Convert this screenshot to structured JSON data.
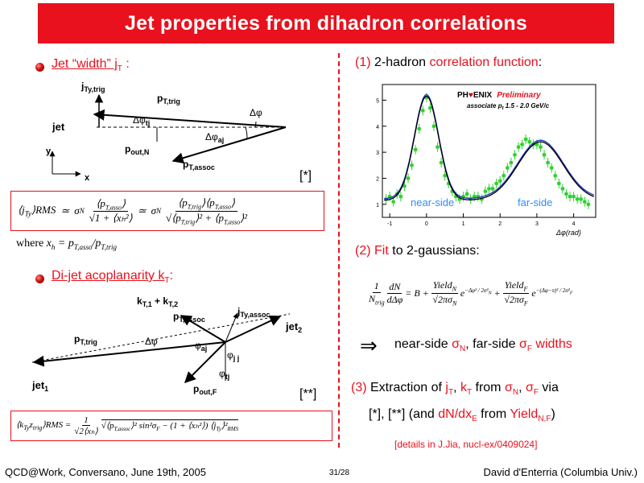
{
  "title": "Jet properties from dihadron correlations",
  "left": {
    "bullet1": {
      "label": "Jet “width”  j",
      "sub": "T",
      "colon": " :"
    },
    "diagram1": {
      "labels": [
        "j",
        "Ty,trig",
        "p",
        "T,trig",
        "Δφ",
        "tj",
        "Δφ",
        "jet",
        "Δφ",
        "aj",
        "p",
        "out,N",
        "p",
        "T,assoc",
        "y",
        "x"
      ]
    },
    "ref1": "[*]",
    "formula1": {
      "lhs": "⟨j",
      "lhs_sub": "Ty",
      "rms": "⟩RMS",
      "approx": "≃",
      "sigma": "σ",
      "sigma_sub": "N",
      "num1": "⟨p",
      "num1_sub": "T,asso",
      "num1_end": "⟩",
      "den1": "√1 + ⟨xₕ²⟩",
      "num2": "⟨p",
      "num2_sub": "T,trig",
      "num2_mid": "⟩⟨p",
      "num2_sub2": "T,asso",
      "num2_end": "⟩",
      "den2": "√⟨p",
      "den2_sub": "T,trig",
      "den2_mid": "⟩² + ⟨p",
      "den2_sub2": "T,asso",
      "den2_end": "⟩²"
    },
    "where": "where ",
    "where_expr": "x",
    "where_sub": "h",
    "where_rest": " = p",
    "where_sub2": "T,asso",
    "where_div": "/p",
    "where_sub3": "T,trig",
    "bullet2": {
      "label": "Di-jet acoplanarity k",
      "sub": "T",
      "colon": ":"
    },
    "diagram2": {
      "labels": [
        "k",
        "T,1",
        " + k",
        "T,2",
        "p",
        "T,assoc",
        "j",
        "Ty,assoc",
        "jet",
        "2",
        "p",
        "T,trig",
        "Δφ",
        "φ",
        "aj",
        "φ",
        "j j",
        "φ",
        "tj",
        "jet",
        "1",
        "p",
        "out,F"
      ]
    },
    "ref2": "[**]",
    "formula2": {
      "text": "⟨k",
      "sub": "Ty",
      "text2": "z",
      "sub2": "trig",
      "rms": "⟩RMS = ",
      "frac_num": "1",
      "frac_den": "√2⟨xₕ⟩",
      "body": "√⟨p",
      "body_sub": "T,assoc",
      "body2": "⟩² sin²σ",
      "body_sub2": "F",
      "body3": " − (1 + ⟨xₕ²⟩) ⟨j",
      "body_sub3": "Ty",
      "body4": "⟩²",
      "body_sub4": "RMS"
    }
  },
  "right": {
    "step1": {
      "num": "(1)",
      "text": " 2-hadron ",
      "hl": "correlation function",
      "end": ":"
    },
    "plot": {
      "logo_a": "PH",
      "logo_b": "ENIX",
      "prelim": "Preliminary",
      "assoc": "associate p",
      "assoc_sub": "t",
      "assoc_range": " 1.5 - 2.0 GeV/c",
      "near_label": "near-side",
      "far_label": "far-side",
      "xaxis_label": "Δφ(rad)"
    },
    "chart_data": {
      "type": "scatter",
      "title": "",
      "xlabel": "Δφ(rad)",
      "ylabel": "",
      "xlim": [
        -1.2,
        4.6
      ],
      "ylim": [
        0.5,
        5.6
      ],
      "xticks": [
        "-1",
        "0",
        "1",
        "2",
        "3",
        "4"
      ],
      "yticks": [
        "1",
        "2",
        "3",
        "4",
        "5"
      ],
      "x": [
        -1.1,
        -1.0,
        -0.9,
        -0.8,
        -0.7,
        -0.6,
        -0.5,
        -0.4,
        -0.3,
        -0.2,
        -0.1,
        0.0,
        0.1,
        0.2,
        0.3,
        0.4,
        0.5,
        0.6,
        0.7,
        0.8,
        0.9,
        1.0,
        1.1,
        1.2,
        1.3,
        1.4,
        1.5,
        1.6,
        1.7,
        1.8,
        1.9,
        2.0,
        2.1,
        2.2,
        2.3,
        2.4,
        2.5,
        2.6,
        2.7,
        2.8,
        2.9,
        3.0,
        3.1,
        3.2,
        3.3,
        3.4,
        3.5,
        3.6,
        3.7,
        3.8,
        3.9,
        4.0,
        4.1,
        4.2,
        4.3,
        4.4
      ],
      "y": [
        1.2,
        1.3,
        1.1,
        1.4,
        1.3,
        1.7,
        2.0,
        2.5,
        3.1,
        3.9,
        4.6,
        5.1,
        4.7,
        4.0,
        3.2,
        2.6,
        2.1,
        1.8,
        1.5,
        1.3,
        1.2,
        1.3,
        1.4,
        1.2,
        1.3,
        1.3,
        1.2,
        1.5,
        1.6,
        1.6,
        1.8,
        1.9,
        2.1,
        2.4,
        2.6,
        2.9,
        3.2,
        3.3,
        3.5,
        3.4,
        3.3,
        3.3,
        3.2,
        2.9,
        2.6,
        2.4,
        2.1,
        1.8,
        1.6,
        1.4,
        1.3,
        1.3,
        1.2,
        1.2,
        1.1,
        1.0
      ],
      "fit_near": {
        "B": 1.15,
        "amp": 4.0,
        "mu": 0.0,
        "sigma": 0.33
      },
      "fit_far": {
        "amp": 2.25,
        "mu": 3.1,
        "sigma": 0.62
      },
      "colors": {
        "points": "#2fd02f",
        "fit": "#000000",
        "fit_alt": "#1c2fbf"
      }
    },
    "step2": {
      "num": "(2)",
      "hl": "Fit",
      "text": " to 2-gaussians:"
    },
    "formula3": {
      "frac1_num": "1",
      "frac1_den": "N",
      "frac1_den_sub": "trig",
      "frac2_num": "dN",
      "frac2_den": "dΔφ",
      "eq": "= B + ",
      "yN": "Yield",
      "yN_sub": "N",
      "yN_den": "√2πσ",
      "yN_den_sub": "N",
      "expN": "−Δφ² / 2σ²",
      "expN_sub": "N",
      "plus": " + ",
      "yF": "Yield",
      "yF_sub": "F",
      "yF_den": "√2πσ",
      "yF_den_sub": "F",
      "expF": "−(Δφ−π)² / 2σ²",
      "expF_sub": "F",
      "e": "e"
    },
    "implies": "⇒",
    "widths": {
      "t1": "near-side ",
      "s1": "σ",
      "s1_sub": "N",
      "t2": ", far-side ",
      "s2": "σ",
      "s2_sub": "F",
      "t3": " widths"
    },
    "step3": {
      "num": "(3)",
      "t1": " Extraction of ",
      "j": "j",
      "j_sub": "T",
      "comma": ", ",
      "k": "k",
      "k_sub": "T",
      "from": " from ",
      "s1": "σ",
      "s1_sub": "N",
      "c2": ", ",
      "s2": "σ",
      "s2_sub": "F",
      "via": " via",
      "line2a": "[*], [**] (and ",
      "dn": "dN/dx",
      "dn_sub": "E",
      "line2b": " from ",
      "y": "Yield",
      "y_sub": "N,F",
      "line2c": ")"
    },
    "details": "[details in J.Jia, nucl-ex/0409024]"
  },
  "footer": {
    "left": "QCD@Work, Conversano, June 19th, 2005",
    "center": "31/28",
    "right": "David d'Enterria (Columbia Univ.)"
  }
}
